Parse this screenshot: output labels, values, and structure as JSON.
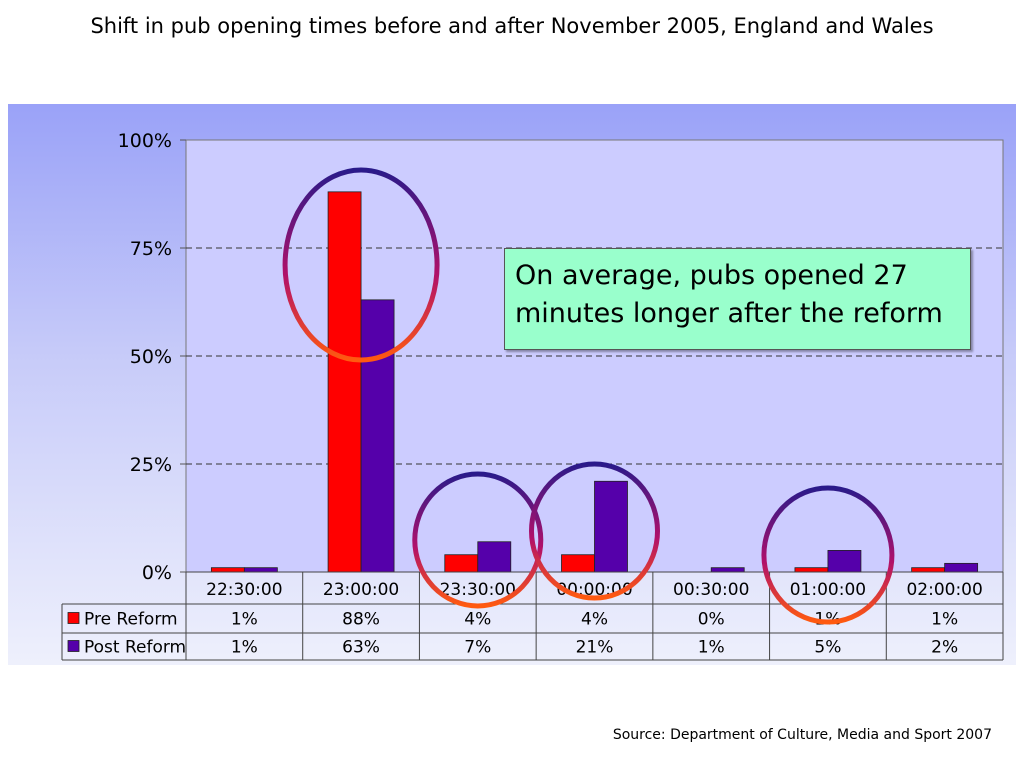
{
  "slide": {
    "title": "Shift in pub opening times before and after November 2005, England and Wales",
    "callout": "On average, pubs opened 27 minutes longer after the reform",
    "source": "Source: Department of Culture, Media and Sport 2007"
  },
  "chart_data": {
    "type": "bar",
    "categories": [
      "22:30:00",
      "23:00:00",
      "23:30:00",
      "00:00:00",
      "00:30:00",
      "01:00:00",
      "02:00:00"
    ],
    "series": [
      {
        "name": "Pre Reform",
        "color": "#ff0000",
        "values": [
          1,
          88,
          4,
          4,
          0,
          1,
          1
        ],
        "labels": [
          "1%",
          "88%",
          "4%",
          "4%",
          "0%",
          "1%",
          "1%"
        ]
      },
      {
        "name": "Post Reform",
        "color": "#5500aa",
        "values": [
          1,
          63,
          7,
          21,
          1,
          5,
          2
        ],
        "labels": [
          "1%",
          "63%",
          "7%",
          "21%",
          "1%",
          "5%",
          "2%"
        ]
      }
    ],
    "ylim": [
      0,
      100
    ],
    "yticks": [
      "0%",
      "25%",
      "50%",
      "75%",
      "100%"
    ],
    "grid": true,
    "data_table": true,
    "highlight_circles": [
      "23:00:00",
      "23:30:00",
      "00:00:00",
      "01:00:00"
    ]
  }
}
